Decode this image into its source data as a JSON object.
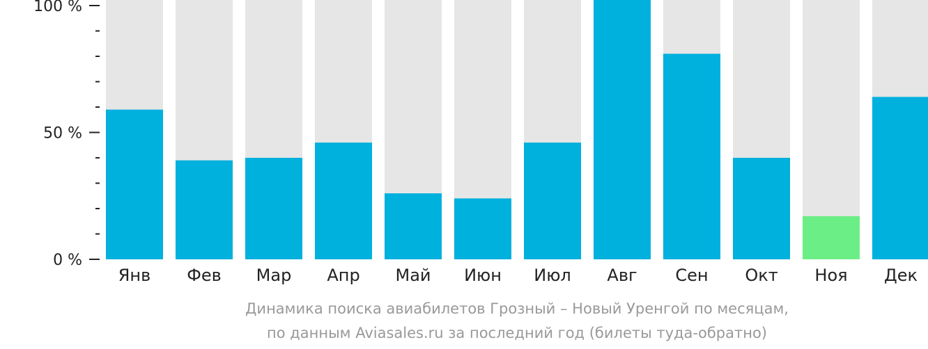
{
  "chart_data": {
    "type": "bar",
    "title": "",
    "xlabel": "",
    "ylabel": "",
    "ylim": [
      0,
      100
    ],
    "yticks": [
      {
        "value": 100,
        "label": "100 %"
      },
      {
        "value": 50,
        "label": "50 %"
      },
      {
        "value": 0,
        "label": "0 %"
      }
    ],
    "minor_ticks_between": 4,
    "categories": [
      "Янв",
      "Фев",
      "Мар",
      "Апр",
      "Май",
      "Июн",
      "Июл",
      "Авг",
      "Сен",
      "Окт",
      "Ноя",
      "Дек"
    ],
    "values": [
      59,
      39,
      40,
      46,
      26,
      24,
      46,
      100,
      81,
      40,
      17,
      64
    ],
    "highlight_index": 10,
    "colors": {
      "bar": "#00b0dd",
      "highlight": "#6cee86",
      "background_bar": "#e6e6e6",
      "axis": "#222222"
    },
    "grid": false,
    "legend": "none"
  },
  "caption": {
    "line1": "Динамика поиска авиабилетов Грозный – Новый Уренгой по месяцам,",
    "line2": "по данным Aviasales.ru за последний год (билеты туда-обратно)"
  }
}
